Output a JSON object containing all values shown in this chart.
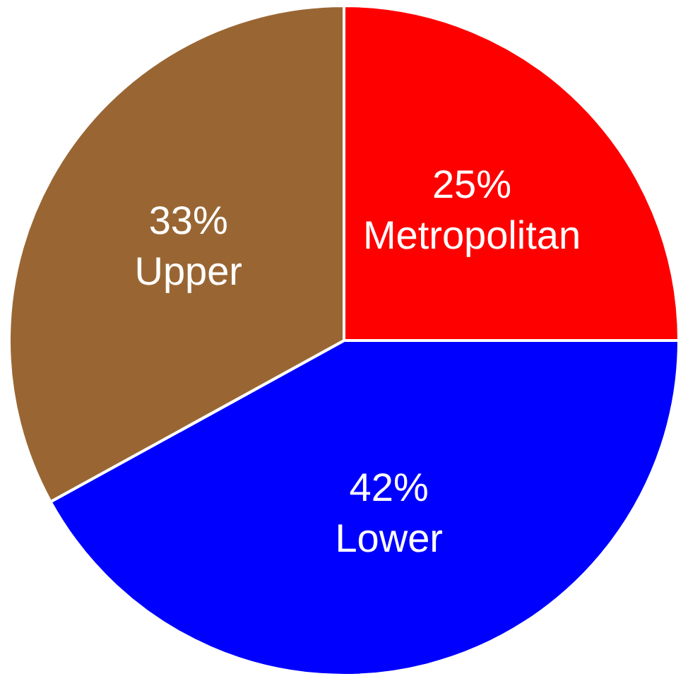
{
  "chart_data": {
    "type": "pie",
    "categories": [
      "Metropolitan",
      "Lower",
      "Upper"
    ],
    "values": [
      25,
      42,
      33
    ],
    "colors": [
      "#ff0000",
      "#0000ff",
      "#996633"
    ],
    "value_labels": [
      "25%",
      "42%",
      "33%"
    ],
    "legend": false
  }
}
